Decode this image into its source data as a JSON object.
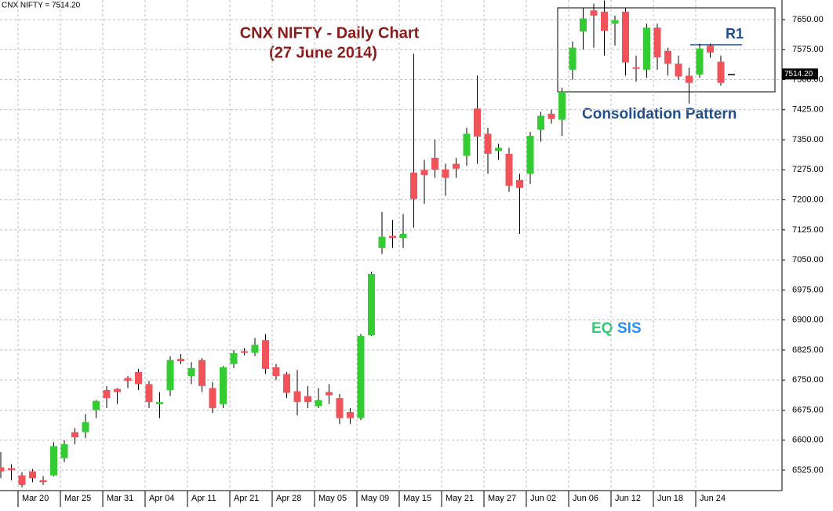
{
  "header": "CNX NIFTY = 7514.20",
  "chart_data": {
    "type": "candlestick",
    "title": "CNX NIFTY - Daily Chart",
    "subtitle": "(27 June 2014)",
    "annotations": [
      "Consolidation Pattern",
      "R1"
    ],
    "watermark": [
      "EQ",
      "SIS"
    ],
    "last_price": {
      "value": 7514.2,
      "label": "7514.20"
    },
    "up_color": "#33cc33",
    "down_color": "#f0545a",
    "grid": true,
    "categories": [
      null,
      null,
      "Mar 20",
      null,
      null,
      null,
      "Mar 25",
      null,
      null,
      null,
      "Mar 31",
      null,
      null,
      null,
      "Apr 04",
      null,
      null,
      null,
      "Apr 11",
      null,
      null,
      null,
      "Apr 21",
      null,
      null,
      null,
      "Apr 28",
      null,
      null,
      null,
      "May 05",
      null,
      null,
      null,
      "May 09",
      null,
      null,
      null,
      "May 15",
      null,
      null,
      null,
      "May 21",
      null,
      null,
      null,
      "May 27",
      null,
      null,
      null,
      "Jun 02",
      null,
      null,
      null,
      "Jun 06",
      null,
      null,
      null,
      "Jun 12",
      null,
      null,
      null,
      "Jun 18",
      null,
      null,
      null,
      "Jun 24",
      null,
      null,
      null
    ],
    "open": [
      6532,
      6530,
      6512,
      6522,
      6500,
      6512,
      6555,
      6620,
      6620,
      6675,
      6725,
      6728,
      6755,
      6770,
      6740,
      6690,
      6725,
      6803,
      6760,
      6800,
      6730,
      6690,
      6790,
      6822,
      6818,
      6850,
      6782,
      6765,
      6722,
      6710,
      6685,
      6720,
      6705,
      6670,
      6655,
      6862,
      7080,
      7110,
      7105,
      7268,
      7275,
      7305,
      7276,
      7290,
      7310,
      7428,
      7365,
      7322,
      7315,
      7250,
      7265,
      7375,
      7415,
      7400,
      7525,
      7620,
      7673,
      7670,
      7640,
      7670,
      7531,
      7525,
      7630,
      7572,
      7540,
      7510,
      7513,
      7585,
      7545,
      7514.2
    ],
    "high": [
      6570,
      6540,
      6520,
      6528,
      6510,
      6595,
      6600,
      6630,
      6665,
      6700,
      6735,
      6730,
      6760,
      6778,
      6748,
      6720,
      6810,
      6815,
      6795,
      6805,
      6745,
      6785,
      6825,
      6830,
      6855,
      6865,
      6790,
      6770,
      6775,
      6735,
      6730,
      6740,
      6715,
      6680,
      6865,
      7020,
      7170,
      7150,
      7165,
      7565,
      7300,
      7350,
      7290,
      7305,
      7380,
      7510,
      7380,
      7340,
      7330,
      7265,
      7370,
      7420,
      7425,
      7480,
      7595,
      7680,
      7690,
      7698,
      7660,
      7680,
      7560,
      7640,
      7640,
      7580,
      7560,
      7530,
      7590,
      7590,
      7560,
      7514.2
    ],
    "low": [
      6505,
      6500,
      6482,
      6495,
      6488,
      6510,
      6545,
      6590,
      6605,
      6655,
      6680,
      6690,
      6730,
      6725,
      6680,
      6655,
      6710,
      6790,
      6740,
      6720,
      6668,
      6680,
      6780,
      6812,
      6810,
      6765,
      6750,
      6705,
      6662,
      6680,
      6680,
      6690,
      6640,
      6640,
      6650,
      6860,
      7065,
      7080,
      7080,
      7130,
      7190,
      7255,
      7210,
      7255,
      7285,
      7290,
      7265,
      7300,
      7220,
      7115,
      7240,
      7345,
      7390,
      7360,
      7500,
      7575,
      7580,
      7560,
      7585,
      7510,
      7495,
      7505,
      7525,
      7510,
      7500,
      7440,
      7505,
      7555,
      7485,
      7514.2
    ],
    "close": [
      6522,
      6525,
      6488,
      6505,
      6495,
      6585,
      6590,
      6607,
      6645,
      6698,
      6705,
      6720,
      6748,
      6740,
      6695,
      6695,
      6800,
      6797,
      6780,
      6735,
      6680,
      6782,
      6817,
      6818,
      6838,
      6778,
      6760,
      6718,
      6695,
      6695,
      6700,
      6712,
      6655,
      6655,
      6860,
      7015,
      7108,
      7105,
      7115,
      7202,
      7262,
      7275,
      7255,
      7278,
      7365,
      7358,
      7315,
      7330,
      7235,
      7230,
      7360,
      7410,
      7402,
      7470,
      7580,
      7653,
      7660,
      7622,
      7648,
      7543,
      7527,
      7630,
      7556,
      7540,
      7508,
      7492,
      7578,
      7568,
      7492,
      7514.2
    ],
    "ylim": [
      6474,
      7699
    ],
    "yticks": [
      {
        "value": 6525,
        "label": "6525.00"
      },
      {
        "value": 6600,
        "label": "6600.00"
      },
      {
        "value": 6675,
        "label": "6675.00"
      },
      {
        "value": 6750,
        "label": "6750.00"
      },
      {
        "value": 6825,
        "label": "6825.00"
      },
      {
        "value": 6900,
        "label": "6900.00"
      },
      {
        "value": 6975,
        "label": "6975.00"
      },
      {
        "value": 7050,
        "label": "7050.00"
      },
      {
        "value": 7125,
        "label": "7125.00"
      },
      {
        "value": 7200,
        "label": "7200.00"
      },
      {
        "value": 7275,
        "label": "7275.00"
      },
      {
        "value": 7350,
        "label": "7350.00"
      },
      {
        "value": 7425,
        "label": "7425.00"
      },
      {
        "value": 7500,
        "label": "7500.00"
      },
      {
        "value": 7575,
        "label": "7575.00"
      },
      {
        "value": 7650,
        "label": "7650.00"
      }
    ]
  }
}
